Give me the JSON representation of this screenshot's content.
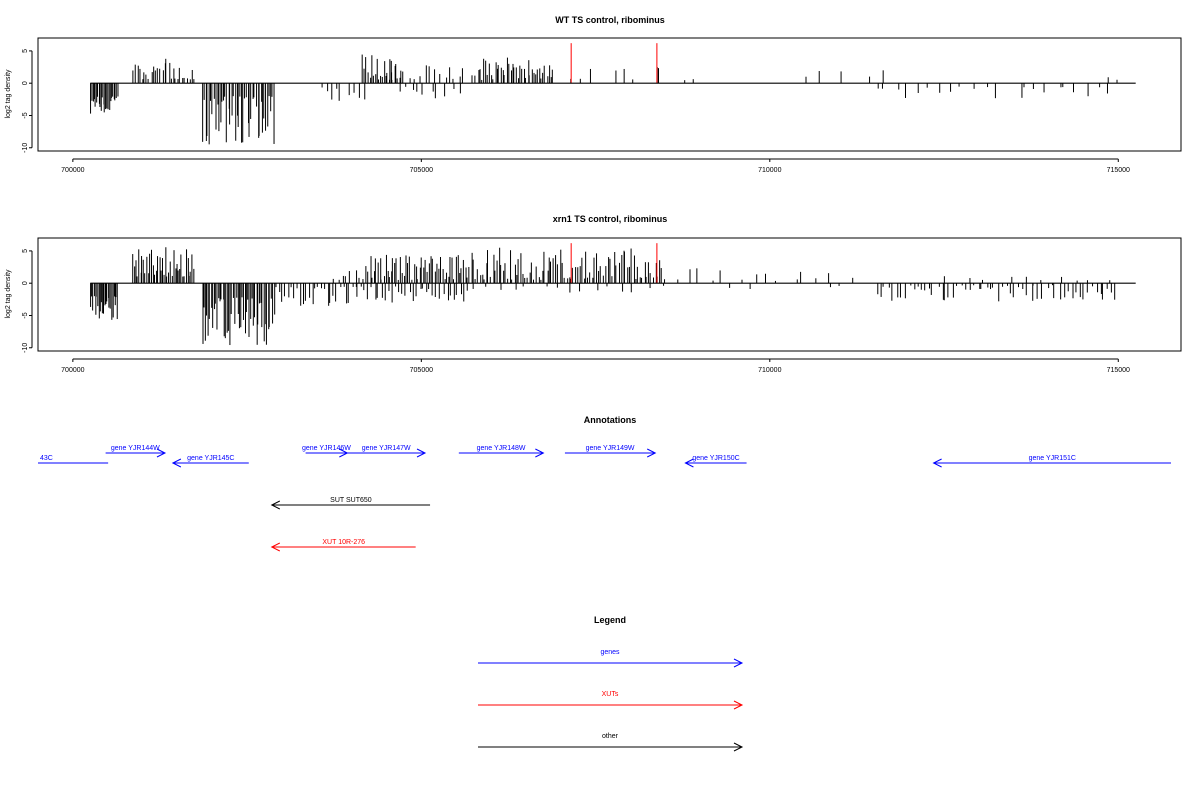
{
  "colors": {
    "axis": "#000000",
    "bar": "#000000",
    "highlight": "#ff0000",
    "gene": "#0000ff",
    "xut": "#ff0000",
    "other": "#000000"
  },
  "chart_data": [
    {
      "type": "bar",
      "title": "WT TS control, ribominus",
      "ylabel": "log2 tag density",
      "xlim": [
        699500,
        715900
      ],
      "ylim": [
        -10.5,
        7
      ],
      "xticks": [
        700000,
        705000,
        710000,
        715000
      ],
      "yticks": [
        5,
        0,
        -5,
        -10
      ],
      "baseline": [
        700250,
        715250
      ],
      "highlight_lines": [
        {
          "x": 707150,
          "y": 6.2
        },
        {
          "x": 708380,
          "y": 6.2
        }
      ],
      "bar_clusters": [
        {
          "x0": 700250,
          "x1": 700650,
          "sign": -1,
          "amp": [
            2.0,
            5.5
          ],
          "count": 24
        },
        {
          "x0": 700850,
          "x1": 701750,
          "sign": 1,
          "amp": [
            0.5,
            3.8
          ],
          "count": 28
        },
        {
          "x0": 701850,
          "x1": 702900,
          "sign": -1,
          "amp": [
            2.0,
            9.8
          ],
          "count": 45
        },
        {
          "x0": 703500,
          "x1": 704200,
          "sign": -1,
          "amp": [
            0.4,
            2.8
          ],
          "count": 9
        },
        {
          "x0": 704150,
          "x1": 704700,
          "sign": 1,
          "amp": [
            0.5,
            4.5
          ],
          "count": 22
        },
        {
          "x0": 704500,
          "x1": 705800,
          "sign": 1,
          "amp": [
            0.5,
            3.0
          ],
          "count": 18
        },
        {
          "x0": 704600,
          "x1": 705600,
          "sign": -1,
          "amp": [
            0.5,
            2.5
          ],
          "count": 10
        },
        {
          "x0": 705800,
          "x1": 706900,
          "sign": 1,
          "amp": [
            0.5,
            4.0
          ],
          "count": 40
        },
        {
          "x0": 707000,
          "x1": 709000,
          "sign": 1,
          "amp": [
            0.4,
            2.6
          ],
          "count": 10
        },
        {
          "x0": 710300,
          "x1": 711800,
          "sign": 1,
          "amp": [
            1.0,
            2.0
          ],
          "count": 5
        },
        {
          "x0": 711400,
          "x1": 713300,
          "sign": -1,
          "amp": [
            0.5,
            2.5
          ],
          "count": 12
        },
        {
          "x0": 713500,
          "x1": 714900,
          "sign": -1,
          "amp": [
            0.5,
            2.5
          ],
          "count": 10
        },
        {
          "x0": 714850,
          "x1": 715000,
          "sign": 1,
          "amp": [
            0.5,
            1.2
          ],
          "count": 2
        }
      ]
    },
    {
      "type": "bar",
      "title": "xrn1 TS control, ribominus",
      "ylabel": "log2 tag density",
      "xlim": [
        699500,
        715900
      ],
      "ylim": [
        -10.5,
        7
      ],
      "xticks": [
        700000,
        705000,
        710000,
        715000
      ],
      "yticks": [
        5,
        0,
        -5,
        -10
      ],
      "baseline": [
        700250,
        715250
      ],
      "highlight_lines": [
        {
          "x": 707150,
          "y": 6.2
        },
        {
          "x": 708380,
          "y": 6.2
        }
      ],
      "bar_clusters": [
        {
          "x0": 700250,
          "x1": 700650,
          "sign": -1,
          "amp": [
            2.0,
            5.8
          ],
          "count": 24
        },
        {
          "x0": 700850,
          "x1": 701750,
          "sign": 1,
          "amp": [
            1.0,
            6.2
          ],
          "count": 40
        },
        {
          "x0": 701850,
          "x1": 702900,
          "sign": -1,
          "amp": [
            2.0,
            9.8
          ],
          "count": 50
        },
        {
          "x0": 702900,
          "x1": 704200,
          "sign": -1,
          "amp": [
            0.5,
            3.5
          ],
          "count": 30
        },
        {
          "x0": 703700,
          "x1": 704200,
          "sign": 1,
          "amp": [
            0.5,
            2.5
          ],
          "count": 8
        },
        {
          "x0": 704200,
          "x1": 705700,
          "sign": 1,
          "amp": [
            0.5,
            4.5
          ],
          "count": 55
        },
        {
          "x0": 704200,
          "x1": 705700,
          "sign": -1,
          "amp": [
            0.5,
            3.0
          ],
          "count": 30
        },
        {
          "x0": 705700,
          "x1": 708500,
          "sign": 1,
          "amp": [
            0.5,
            5.5
          ],
          "count": 90
        },
        {
          "x0": 705700,
          "x1": 708500,
          "sign": -1,
          "amp": [
            0.3,
            1.5
          ],
          "count": 15
        },
        {
          "x0": 708500,
          "x1": 711200,
          "sign": 1,
          "amp": [
            0.3,
            2.8
          ],
          "count": 14
        },
        {
          "x0": 709000,
          "x1": 711500,
          "sign": -1,
          "amp": [
            0.3,
            1.0
          ],
          "count": 4
        },
        {
          "x0": 711500,
          "x1": 715000,
          "sign": -1,
          "amp": [
            0.3,
            3.0
          ],
          "count": 60
        },
        {
          "x0": 712500,
          "x1": 715000,
          "sign": 1,
          "amp": [
            0.3,
            1.3
          ],
          "count": 10
        }
      ]
    }
  ],
  "annotations": {
    "title": "Annotations",
    "items": [
      {
        "label": "43C",
        "type": "gene",
        "dir": "none",
        "x0": 699500,
        "x1": 701450,
        "row": 0
      },
      {
        "label": "gene YJR144W",
        "type": "gene",
        "dir": "right",
        "x0": 701380,
        "x1": 703030,
        "row": 0
      },
      {
        "label": "gene YJR145C",
        "type": "gene",
        "dir": "left",
        "x0": 703250,
        "x1": 705360,
        "row": 0
      },
      {
        "label": "gene YJR146W",
        "type": "gene",
        "dir": "right",
        "x0": 706940,
        "x1": 708100,
        "row": 0
      },
      {
        "label": "gene YJR147W",
        "type": "gene",
        "dir": "right",
        "x0": 708100,
        "x1": 710260,
        "row": 0
      },
      {
        "label": "gene YJR148W",
        "type": "gene",
        "dir": "right",
        "x0": 711200,
        "x1": 713550,
        "row": 0
      },
      {
        "label": "gene YJR149W",
        "type": "gene",
        "dir": "right",
        "x0": 714150,
        "x1": 716660,
        "row": 0
      },
      {
        "label": "gene YJR150C",
        "type": "gene",
        "dir": "left",
        "x0": 717500,
        "x1": 719200,
        "row": 0
      },
      {
        "label": "gene YJR151C",
        "type": "gene",
        "dir": "left",
        "x0": 724400,
        "x1": 731000,
        "row": 0
      },
      {
        "label": "SUT SUT650",
        "type": "other",
        "dir": "left",
        "x0": 706000,
        "x1": 710400,
        "row": 1
      },
      {
        "label": "XUT 10R-276",
        "type": "xut",
        "dir": "left",
        "x0": 706000,
        "x1": 710000,
        "row": 2
      }
    ]
  },
  "legend": {
    "title": "Legend",
    "items": [
      {
        "label": "genes",
        "type": "gene"
      },
      {
        "label": "XUTs",
        "type": "xut"
      },
      {
        "label": "other",
        "type": "other"
      }
    ]
  }
}
